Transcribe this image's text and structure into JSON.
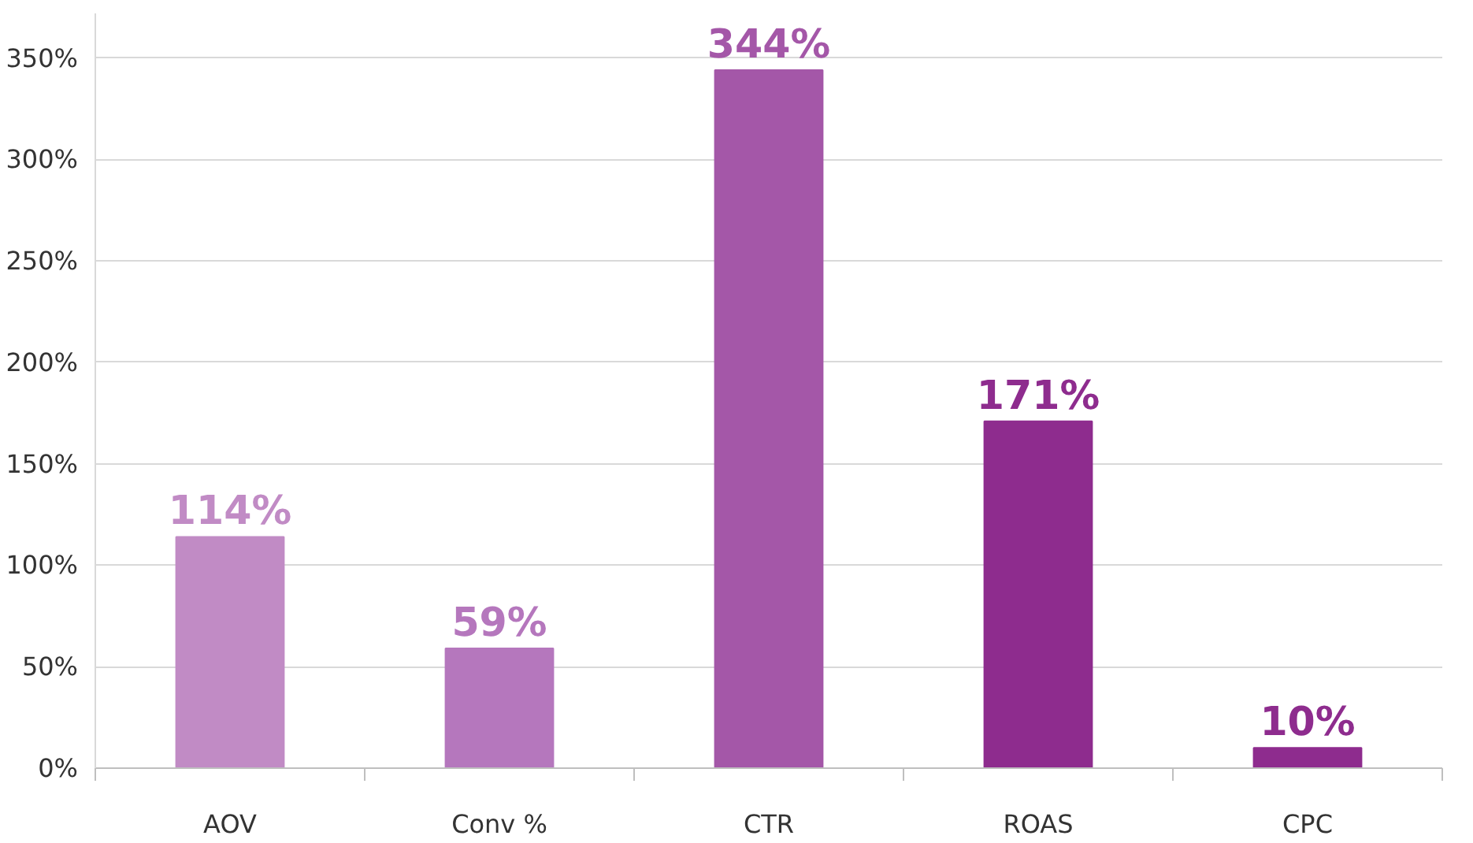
{
  "chart_data": {
    "type": "bar",
    "categories": [
      "AOV",
      "Conv %",
      "CTR",
      "ROAS",
      "CPC"
    ],
    "values": [
      114,
      59,
      344,
      171,
      10
    ],
    "colors": [
      "#c18bc5",
      "#b577bd",
      "#a457a8",
      "#8e2c8e",
      "#8e2c8e"
    ],
    "value_labels": [
      "114%",
      "59%",
      "344%",
      "171%",
      "10%"
    ],
    "ylim": [
      0,
      372
    ],
    "yticks": [
      {
        "value": 0,
        "label": "0%"
      },
      {
        "value": 50,
        "label": "50%"
      },
      {
        "value": 100,
        "label": "100%"
      },
      {
        "value": 150,
        "label": "150%"
      },
      {
        "value": 200,
        "label": "200%"
      },
      {
        "value": 250,
        "label": "250%"
      },
      {
        "value": 300,
        "label": "300%"
      },
      {
        "value": 350,
        "label": "350%"
      }
    ],
    "grid": "y"
  }
}
